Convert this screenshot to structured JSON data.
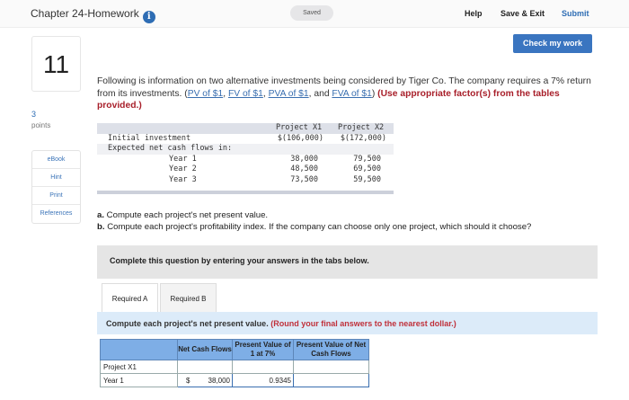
{
  "header": {
    "title": "Chapter 24-Homework",
    "saved": "Saved",
    "help": "Help",
    "save_exit": "Save & Exit",
    "submit": "Submit",
    "info_icon": "i"
  },
  "check_button": "Check my work",
  "question": {
    "number": "11",
    "points": "3",
    "points_label": "points"
  },
  "sidebar": {
    "items": [
      "eBook",
      "Hint",
      "Print",
      "References"
    ]
  },
  "problem": {
    "text": "Following is information on two alternative investments being considered by Tiger Co. The company requires a 7% return from its investments. (",
    "links": [
      "PV of $1",
      "FV of $1",
      "PVA of $1",
      "FVA of $1"
    ],
    "sep1": ", ",
    "sep2": ", ",
    "sep3": ", and ",
    "close": ") ",
    "instruction": "(Use appropriate factor(s) from the tables provided.)"
  },
  "data_table": {
    "headers": [
      "Project X1",
      "Project X2"
    ],
    "rows": [
      {
        "label": "Initial investment",
        "x1": "$(106,000)",
        "x2": "$(172,000)"
      },
      {
        "label": "Expected net cash flows in:",
        "x1": "",
        "x2": ""
      },
      {
        "label": "Year 1",
        "x1": "38,000",
        "x2": "79,500"
      },
      {
        "label": "Year 2",
        "x1": "48,500",
        "x2": "69,500"
      },
      {
        "label": "Year 3",
        "x1": "73,500",
        "x2": "59,500"
      }
    ]
  },
  "parts": {
    "a_label": "a.",
    "a": " Compute each project's net present value.",
    "b_label": "b.",
    "b": " Compute each project's profitability index. If the company can choose only one project, which should it choose?"
  },
  "complete_note": "Complete this question by entering your answers in the tabs below.",
  "tabs": [
    "Required A",
    "Required B"
  ],
  "instruction": {
    "text": "Compute each project's net present value. ",
    "note": "(Round your final answers to the nearest dollar.)"
  },
  "answer_table": {
    "headers": [
      "",
      "Net Cash Flows",
      "Present Value of 1 at 7%",
      "Present Value of Net Cash Flows"
    ],
    "rows": [
      {
        "label": "Project X1",
        "cash": "",
        "pv": "",
        "pvcf": ""
      },
      {
        "label": "Year 1",
        "currency": "$",
        "cash": "38,000",
        "pv": "0.9345",
        "pvcf": ""
      }
    ]
  }
}
